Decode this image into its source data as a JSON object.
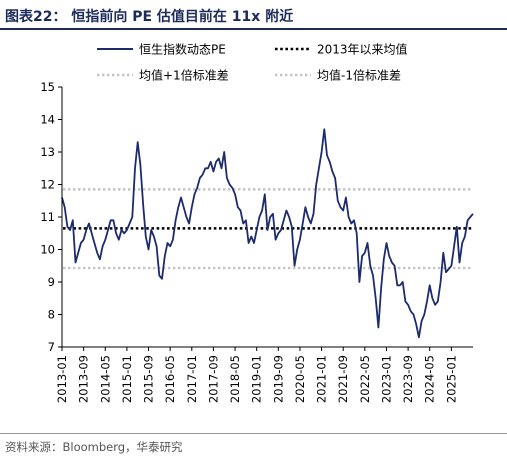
{
  "figure": {
    "title": "图表22：  恒指前向 PE 估值目前在 11x 附近",
    "source": "资料来源：Bloomberg，华泰研究"
  },
  "chart_data": {
    "type": "line",
    "title": "",
    "xlabel": "",
    "ylabel": "",
    "ylim": [
      7,
      15
    ],
    "yticks": [
      "7",
      "8",
      "9",
      "10",
      "11",
      "12",
      "13",
      "14",
      "15"
    ],
    "xticks": [
      "2013-01",
      "2013-09",
      "2014-05",
      "2015-01",
      "2015-09",
      "2016-05",
      "2017-01",
      "2017-09",
      "2018-05",
      "2019-01",
      "2019-09",
      "2020-05",
      "2021-01",
      "2021-09",
      "2022-05",
      "2023-01",
      "2023-09",
      "2024-05",
      "2025-01"
    ],
    "x_range": [
      "2013-01",
      "2025-09"
    ],
    "grid": false,
    "legend": "top",
    "series": [
      {
        "name": "恒生指数动态PE",
        "style": "solid",
        "color": "#1c2b6e",
        "points": [
          [
            "2013-01",
            11.6
          ],
          [
            "2013-02",
            11.3
          ],
          [
            "2013-03",
            10.7
          ],
          [
            "2013-04",
            10.6
          ],
          [
            "2013-05",
            10.9
          ],
          [
            "2013-06",
            9.6
          ],
          [
            "2013-07",
            9.9
          ],
          [
            "2013-08",
            10.2
          ],
          [
            "2013-09",
            10.3
          ],
          [
            "2013-10",
            10.6
          ],
          [
            "2013-11",
            10.8
          ],
          [
            "2013-12",
            10.5
          ],
          [
            "2014-01",
            10.2
          ],
          [
            "2014-02",
            9.9
          ],
          [
            "2014-03",
            9.7
          ],
          [
            "2014-04",
            10.1
          ],
          [
            "2014-05",
            10.3
          ],
          [
            "2014-06",
            10.6
          ],
          [
            "2014-07",
            10.9
          ],
          [
            "2014-08",
            10.9
          ],
          [
            "2014-09",
            10.5
          ],
          [
            "2014-10",
            10.3
          ],
          [
            "2014-11",
            10.6
          ],
          [
            "2014-12",
            10.5
          ],
          [
            "2015-01",
            10.6
          ],
          [
            "2015-02",
            10.8
          ],
          [
            "2015-03",
            11.0
          ],
          [
            "2015-04",
            12.5
          ],
          [
            "2015-05",
            13.3
          ],
          [
            "2015-06",
            12.6
          ],
          [
            "2015-07",
            11.4
          ],
          [
            "2015-08",
            10.4
          ],
          [
            "2015-09",
            10.0
          ],
          [
            "2015-10",
            10.6
          ],
          [
            "2015-11",
            10.4
          ],
          [
            "2015-12",
            10.1
          ],
          [
            "2016-01",
            9.2
          ],
          [
            "2016-02",
            9.1
          ],
          [
            "2016-03",
            9.8
          ],
          [
            "2016-04",
            10.2
          ],
          [
            "2016-05",
            10.1
          ],
          [
            "2016-06",
            10.3
          ],
          [
            "2016-07",
            10.9
          ],
          [
            "2016-08",
            11.3
          ],
          [
            "2016-09",
            11.6
          ],
          [
            "2016-10",
            11.3
          ],
          [
            "2016-11",
            11.0
          ],
          [
            "2016-12",
            10.8
          ],
          [
            "2017-01",
            11.3
          ],
          [
            "2017-02",
            11.7
          ],
          [
            "2017-03",
            11.9
          ],
          [
            "2017-04",
            12.2
          ],
          [
            "2017-05",
            12.3
          ],
          [
            "2017-06",
            12.5
          ],
          [
            "2017-07",
            12.5
          ],
          [
            "2017-08",
            12.7
          ],
          [
            "2017-09",
            12.4
          ],
          [
            "2017-10",
            12.7
          ],
          [
            "2017-11",
            12.8
          ],
          [
            "2017-12",
            12.5
          ],
          [
            "2018-01",
            13.0
          ],
          [
            "2018-02",
            12.2
          ],
          [
            "2018-03",
            12.0
          ],
          [
            "2018-04",
            11.9
          ],
          [
            "2018-05",
            11.7
          ],
          [
            "2018-06",
            11.3
          ],
          [
            "2018-07",
            11.2
          ],
          [
            "2018-08",
            10.8
          ],
          [
            "2018-09",
            10.9
          ],
          [
            "2018-10",
            10.2
          ],
          [
            "2018-11",
            10.4
          ],
          [
            "2018-12",
            10.2
          ],
          [
            "2019-01",
            10.6
          ],
          [
            "2019-02",
            11.0
          ],
          [
            "2019-03",
            11.2
          ],
          [
            "2019-04",
            11.7
          ],
          [
            "2019-05",
            10.6
          ],
          [
            "2019-06",
            11.0
          ],
          [
            "2019-07",
            11.1
          ],
          [
            "2019-08",
            10.3
          ],
          [
            "2019-09",
            10.5
          ],
          [
            "2019-10",
            10.6
          ],
          [
            "2019-11",
            10.9
          ],
          [
            "2019-12",
            11.2
          ],
          [
            "2020-01",
            11.0
          ],
          [
            "2020-02",
            10.7
          ],
          [
            "2020-03",
            9.5
          ],
          [
            "2020-04",
            10.0
          ],
          [
            "2020-05",
            10.3
          ],
          [
            "2020-06",
            10.8
          ],
          [
            "2020-07",
            11.3
          ],
          [
            "2020-08",
            11.0
          ],
          [
            "2020-09",
            10.8
          ],
          [
            "2020-10",
            11.1
          ],
          [
            "2020-11",
            12.0
          ],
          [
            "2020-12",
            12.5
          ],
          [
            "2021-01",
            13.0
          ],
          [
            "2021-02",
            13.7
          ],
          [
            "2021-03",
            12.9
          ],
          [
            "2021-04",
            12.7
          ],
          [
            "2021-05",
            12.4
          ],
          [
            "2021-06",
            12.2
          ],
          [
            "2021-07",
            11.5
          ],
          [
            "2021-08",
            11.3
          ],
          [
            "2021-09",
            11.2
          ],
          [
            "2021-10",
            11.6
          ],
          [
            "2021-11",
            11.0
          ],
          [
            "2021-12",
            10.8
          ],
          [
            "2022-01",
            10.9
          ],
          [
            "2022-02",
            10.5
          ],
          [
            "2022-03",
            9.0
          ],
          [
            "2022-04",
            9.8
          ],
          [
            "2022-05",
            9.9
          ],
          [
            "2022-06",
            10.2
          ],
          [
            "2022-07",
            9.5
          ],
          [
            "2022-08",
            9.2
          ],
          [
            "2022-09",
            8.5
          ],
          [
            "2022-10",
            7.6
          ],
          [
            "2022-11",
            8.8
          ],
          [
            "2022-12",
            9.7
          ],
          [
            "2023-01",
            10.2
          ],
          [
            "2023-02",
            9.8
          ],
          [
            "2023-03",
            9.6
          ],
          [
            "2023-04",
            9.5
          ],
          [
            "2023-05",
            8.9
          ],
          [
            "2023-06",
            8.9
          ],
          [
            "2023-07",
            9.0
          ],
          [
            "2023-08",
            8.4
          ],
          [
            "2023-09",
            8.3
          ],
          [
            "2023-10",
            8.1
          ],
          [
            "2023-11",
            8.0
          ],
          [
            "2023-12",
            7.7
          ],
          [
            "2024-01",
            7.3
          ],
          [
            "2024-02",
            7.8
          ],
          [
            "2024-03",
            8.0
          ],
          [
            "2024-04",
            8.4
          ],
          [
            "2024-05",
            8.9
          ],
          [
            "2024-06",
            8.5
          ],
          [
            "2024-07",
            8.3
          ],
          [
            "2024-08",
            8.4
          ],
          [
            "2024-09",
            9.0
          ],
          [
            "2024-10",
            9.9
          ],
          [
            "2024-11",
            9.3
          ],
          [
            "2024-12",
            9.4
          ],
          [
            "2025-01",
            9.5
          ],
          [
            "2025-02",
            10.1
          ],
          [
            "2025-03",
            10.7
          ],
          [
            "2025-04",
            9.6
          ],
          [
            "2025-05",
            10.2
          ],
          [
            "2025-06",
            10.4
          ],
          [
            "2025-07",
            10.9
          ],
          [
            "2025-08",
            11.0
          ],
          [
            "2025-09",
            11.1
          ]
        ]
      },
      {
        "name": "2013年以来均值",
        "style": "dotted-bold",
        "color": "#000000",
        "value": 10.65
      },
      {
        "name": "均值+1倍标准差",
        "style": "dotted-light",
        "color": "#c4c4c4",
        "value": 11.85
      },
      {
        "name": "均值-1倍标准差",
        "style": "dotted-light",
        "color": "#c4c4c4",
        "value": 9.43
      }
    ]
  }
}
